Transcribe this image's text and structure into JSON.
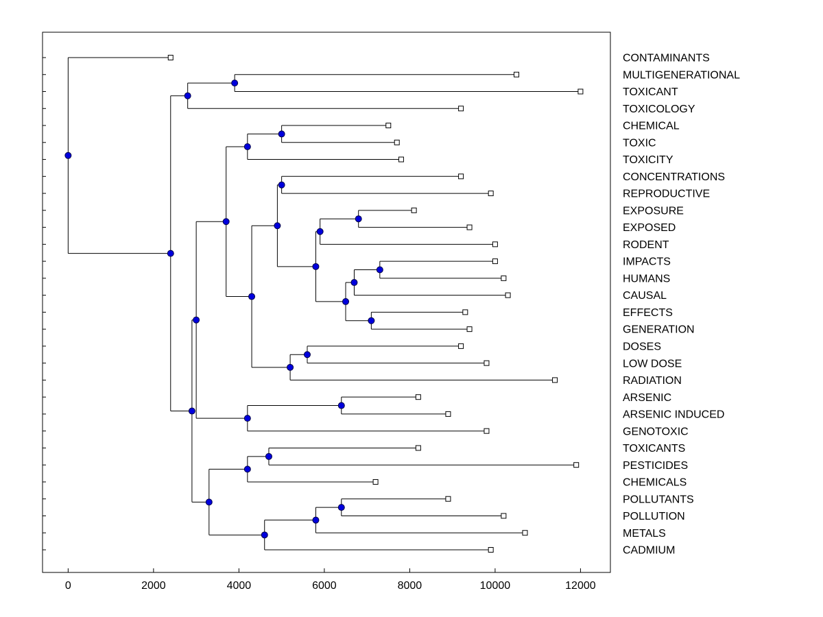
{
  "figure": {
    "background": "#ffffff"
  },
  "chart_data": {
    "type": "dendrogram",
    "orientation": "horizontal",
    "title": "",
    "xlabel": "",
    "ylabel": "",
    "grid": false,
    "legend": null,
    "x_axis": {
      "ticks": [
        0,
        2000,
        4000,
        6000,
        8000,
        10000,
        12000
      ],
      "limits": [
        -600,
        12700
      ]
    },
    "leaf_labels_top_to_bottom": [
      "CONTAMINANTS",
      "MULTIGENERATIONAL",
      "TOXICANT",
      "TOXICOLOGY",
      "CHEMICAL",
      "TOXIC",
      "TOXICITY",
      "CONCENTRATIONS",
      "REPRODUCTIVE",
      "EXPOSURE",
      "EXPOSED",
      "RODENT",
      "IMPACTS",
      "HUMANS",
      "CAUSAL",
      "EFFECTS",
      "GENERATION",
      "DOSES",
      "LOW DOSE",
      "RADIATION",
      "ARSENIC",
      "ARSENIC INDUCED",
      "GENOTOXIC",
      "TOXICANTS",
      "PESTICIDES",
      "CHEMICALS",
      "POLLUTANTS",
      "POLLUTION",
      "METALS",
      "CADMIUM"
    ],
    "leaf_distances": [
      2400,
      10500,
      12000,
      9200,
      7500,
      7700,
      7800,
      9200,
      9900,
      8100,
      9400,
      10000,
      10000,
      10200,
      10300,
      9300,
      9400,
      9200,
      9800,
      11400,
      8200,
      8900,
      9800,
      8200,
      11900,
      7200,
      8900,
      10200,
      10700,
      9900
    ],
    "tree": {
      "dist": 0,
      "children": [
        {
          "name": "CONTAMINANTS",
          "dist": 2400
        },
        {
          "dist": 2400,
          "children": [
            {
              "dist": 2800,
              "children": [
                {
                  "dist": 3900,
                  "children": [
                    {
                      "name": "MULTIGENERATIONAL",
                      "dist": 10500
                    },
                    {
                      "name": "TOXICANT",
                      "dist": 12000
                    }
                  ]
                },
                {
                  "name": "TOXICOLOGY",
                  "dist": 9200
                }
              ]
            },
            {
              "dist": 2900,
              "children": [
                {
                  "dist": 3000,
                  "children": [
                    {
                      "dist": 3700,
                      "children": [
                        {
                          "dist": 4200,
                          "children": [
                            {
                              "dist": 5000,
                              "children": [
                                {
                                  "name": "CHEMICAL",
                                  "dist": 7500
                                },
                                {
                                  "name": "TOXIC",
                                  "dist": 7700
                                }
                              ]
                            },
                            {
                              "name": "TOXICITY",
                              "dist": 7800
                            }
                          ]
                        },
                        {
                          "dist": 4300,
                          "children": [
                            {
                              "dist": 4900,
                              "children": [
                                {
                                  "dist": 5000,
                                  "children": [
                                    {
                                      "name": "CONCENTRATIONS",
                                      "dist": 9200
                                    },
                                    {
                                      "name": "REPRODUCTIVE",
                                      "dist": 9900
                                    }
                                  ]
                                },
                                {
                                  "dist": 5800,
                                  "children": [
                                    {
                                      "dist": 5900,
                                      "children": [
                                        {
                                          "dist": 6800,
                                          "children": [
                                            {
                                              "name": "EXPOSURE",
                                              "dist": 8100
                                            },
                                            {
                                              "name": "EXPOSED",
                                              "dist": 9400
                                            }
                                          ]
                                        },
                                        {
                                          "name": "RODENT",
                                          "dist": 10000
                                        }
                                      ]
                                    },
                                    {
                                      "dist": 6500,
                                      "children": [
                                        {
                                          "dist": 6700,
                                          "children": [
                                            {
                                              "dist": 7300,
                                              "children": [
                                                {
                                                  "name": "IMPACTS",
                                                  "dist": 10000
                                                },
                                                {
                                                  "name": "HUMANS",
                                                  "dist": 10200
                                                }
                                              ]
                                            },
                                            {
                                              "name": "CAUSAL",
                                              "dist": 10300
                                            }
                                          ]
                                        },
                                        {
                                          "dist": 7100,
                                          "children": [
                                            {
                                              "name": "EFFECTS",
                                              "dist": 9300
                                            },
                                            {
                                              "name": "GENERATION",
                                              "dist": 9400
                                            }
                                          ]
                                        }
                                      ]
                                    }
                                  ]
                                }
                              ]
                            },
                            {
                              "dist": 5200,
                              "children": [
                                {
                                  "dist": 5600,
                                  "children": [
                                    {
                                      "name": "DOSES",
                                      "dist": 9200
                                    },
                                    {
                                      "name": "LOW DOSE",
                                      "dist": 9800
                                    }
                                  ]
                                },
                                {
                                  "name": "RADIATION",
                                  "dist": 11400
                                }
                              ]
                            }
                          ]
                        }
                      ]
                    },
                    {
                      "dist": 4200,
                      "children": [
                        {
                          "dist": 6400,
                          "children": [
                            {
                              "name": "ARSENIC",
                              "dist": 8200
                            },
                            {
                              "name": "ARSENIC INDUCED",
                              "dist": 8900
                            }
                          ]
                        },
                        {
                          "name": "GENOTOXIC",
                          "dist": 9800
                        }
                      ]
                    }
                  ]
                },
                {
                  "dist": 3300,
                  "children": [
                    {
                      "dist": 4200,
                      "children": [
                        {
                          "dist": 4700,
                          "children": [
                            {
                              "name": "TOXICANTS",
                              "dist": 8200
                            },
                            {
                              "name": "PESTICIDES",
                              "dist": 11900
                            }
                          ]
                        },
                        {
                          "name": "CHEMICALS",
                          "dist": 7200
                        }
                      ]
                    },
                    {
                      "dist": 4600,
                      "children": [
                        {
                          "dist": 5800,
                          "children": [
                            {
                              "dist": 6400,
                              "children": [
                                {
                                  "name": "POLLUTANTS",
                                  "dist": 8900
                                },
                                {
                                  "name": "POLLUTION",
                                  "dist": 10200
                                }
                              ]
                            },
                            {
                              "name": "METALS",
                              "dist": 10700
                            }
                          ]
                        },
                        {
                          "name": "CADMIUM",
                          "dist": 9900
                        }
                      ]
                    }
                  ]
                }
              ]
            }
          ]
        }
      ]
    },
    "style": {
      "branch_color": "#000000",
      "internal_node_fill": "#0000dd",
      "internal_node_stroke": "#000044",
      "leaf_marker_fill": "#ffffff",
      "leaf_marker_stroke": "#000000",
      "axis_color": "#000000",
      "text_color": "#000000",
      "background": "#ffffff"
    }
  }
}
